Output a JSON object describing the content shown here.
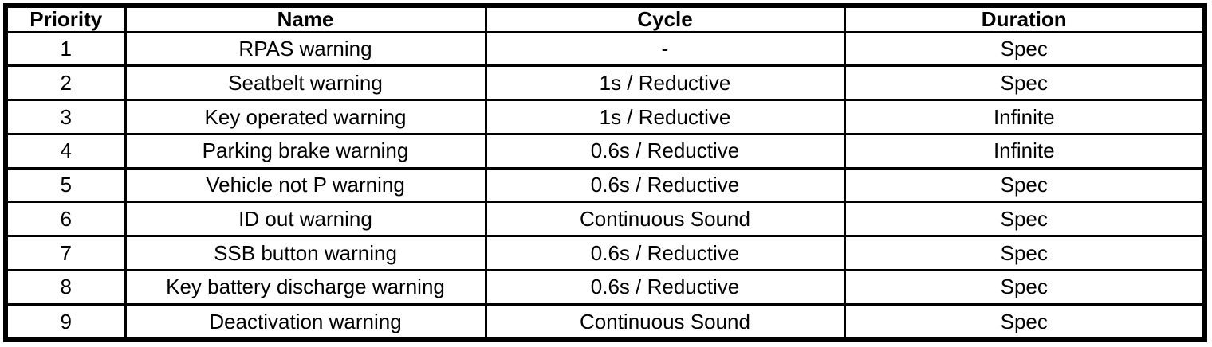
{
  "table": {
    "headers": [
      "Priority",
      "Name",
      "Cycle",
      "Duration"
    ],
    "rows": [
      [
        "1",
        "RPAS warning",
        "-",
        "Spec"
      ],
      [
        "2",
        "Seatbelt warning",
        "1s / Reductive",
        "Spec"
      ],
      [
        "3",
        "Key operated warning",
        "1s / Reductive",
        "Infinite"
      ],
      [
        "4",
        "Parking brake warning",
        "0.6s / Reductive",
        "Infinite"
      ],
      [
        "5",
        "Vehicle not P warning",
        "0.6s / Reductive",
        "Spec"
      ],
      [
        "6",
        "ID out warning",
        "Continuous Sound",
        "Spec"
      ],
      [
        "7",
        "SSB button warning",
        "0.6s / Reductive",
        "Spec"
      ],
      [
        "8",
        "Key battery discharge warning",
        "0.6s / Reductive",
        "Spec"
      ],
      [
        "9",
        "Deactivation warning",
        "Continuous Sound",
        "Spec"
      ]
    ]
  },
  "colors": {
    "border": "#000000",
    "background": "#ffffff",
    "text": "#000000"
  }
}
